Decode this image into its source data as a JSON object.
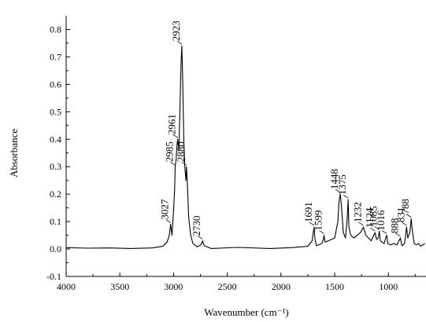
{
  "chart_data": {
    "type": "line",
    "xlabel": "Wavenumber (cm⁻¹)",
    "ylabel": "Absorbance",
    "x_reversed": true,
    "xlim": [
      4000,
      650
    ],
    "ylim": [
      -0.1,
      0.85
    ],
    "x_ticks": [
      4000,
      3500,
      3000,
      2500,
      2000,
      1500,
      1000
    ],
    "y_ticks": [
      -0.1,
      0.0,
      0.1,
      0.2,
      0.3,
      0.4,
      0.5,
      0.6,
      0.7,
      0.8
    ],
    "y_tick_labels": [
      "-0.1",
      "0.0",
      "0.1",
      "0.2",
      "0.3",
      "0.4",
      "0.5",
      "0.6",
      "0.7",
      "0.8"
    ],
    "grid": false,
    "legend": "none",
    "series": [
      {
        "color": "#000000",
        "points": [
          [
            4000,
            0.005
          ],
          [
            3800,
            0.003
          ],
          [
            3600,
            0.004
          ],
          [
            3400,
            0.002
          ],
          [
            3200,
            0.004
          ],
          [
            3100,
            0.01
          ],
          [
            3060,
            0.025
          ],
          [
            3040,
            0.05
          ],
          [
            3027,
            0.09
          ],
          [
            3015,
            0.05
          ],
          [
            3000,
            0.14
          ],
          [
            2990,
            0.22
          ],
          [
            2985,
            0.3
          ],
          [
            2975,
            0.33
          ],
          [
            2968,
            0.38
          ],
          [
            2961,
            0.4
          ],
          [
            2950,
            0.36
          ],
          [
            2940,
            0.52
          ],
          [
            2930,
            0.68
          ],
          [
            2923,
            0.74
          ],
          [
            2915,
            0.62
          ],
          [
            2905,
            0.4
          ],
          [
            2895,
            0.3
          ],
          [
            2885,
            0.25
          ],
          [
            2880,
            0.3
          ],
          [
            2870,
            0.22
          ],
          [
            2860,
            0.12
          ],
          [
            2850,
            0.08
          ],
          [
            2840,
            0.05
          ],
          [
            2820,
            0.02
          ],
          [
            2780,
            0.008
          ],
          [
            2745,
            0.015
          ],
          [
            2730,
            0.03
          ],
          [
            2715,
            0.012
          ],
          [
            2650,
            0.002
          ],
          [
            2400,
            0.006
          ],
          [
            2100,
            0.002
          ],
          [
            1900,
            0.005
          ],
          [
            1750,
            0.01
          ],
          [
            1710,
            0.03
          ],
          [
            1700,
            0.06
          ],
          [
            1691,
            0.08
          ],
          [
            1685,
            0.04
          ],
          [
            1670,
            0.012
          ],
          [
            1620,
            0.02
          ],
          [
            1605,
            0.035
          ],
          [
            1599,
            0.05
          ],
          [
            1590,
            0.025
          ],
          [
            1560,
            0.03
          ],
          [
            1500,
            0.04
          ],
          [
            1470,
            0.1
          ],
          [
            1460,
            0.17
          ],
          [
            1448,
            0.2
          ],
          [
            1438,
            0.16
          ],
          [
            1420,
            0.06
          ],
          [
            1400,
            0.04
          ],
          [
            1385,
            0.1
          ],
          [
            1375,
            0.18
          ],
          [
            1368,
            0.08
          ],
          [
            1350,
            0.05
          ],
          [
            1320,
            0.04
          ],
          [
            1290,
            0.05
          ],
          [
            1260,
            0.06
          ],
          [
            1232,
            0.08
          ],
          [
            1210,
            0.05
          ],
          [
            1160,
            0.03
          ],
          [
            1124,
            0.06
          ],
          [
            1110,
            0.035
          ],
          [
            1095,
            0.04
          ],
          [
            1085,
            0.065
          ],
          [
            1075,
            0.03
          ],
          [
            1040,
            0.02
          ],
          [
            1025,
            0.04
          ],
          [
            1016,
            0.05
          ],
          [
            1005,
            0.02
          ],
          [
            980,
            0.015
          ],
          [
            950,
            0.02
          ],
          [
            920,
            0.015
          ],
          [
            888,
            0.04
          ],
          [
            875,
            0.012
          ],
          [
            850,
            0.02
          ],
          [
            840,
            0.05
          ],
          [
            831,
            0.08
          ],
          [
            820,
            0.04
          ],
          [
            800,
            0.06
          ],
          [
            788,
            0.11
          ],
          [
            778,
            0.07
          ],
          [
            760,
            0.02
          ],
          [
            740,
            0.015
          ],
          [
            720,
            0.02
          ],
          [
            700,
            0.01
          ],
          [
            680,
            0.015
          ],
          [
            660,
            0.02
          ]
        ]
      }
    ],
    "annotations": [
      {
        "text": "3027",
        "x": 3027,
        "y": 0.09
      },
      {
        "text": "2985",
        "x": 2985,
        "y": 0.3
      },
      {
        "text": "2961",
        "x": 2961,
        "y": 0.4
      },
      {
        "text": "2923",
        "x": 2923,
        "y": 0.74
      },
      {
        "text": "2880",
        "x": 2880,
        "y": 0.3
      },
      {
        "text": "2730",
        "x": 2730,
        "y": 0.03
      },
      {
        "text": "1691",
        "x": 1691,
        "y": 0.08
      },
      {
        "text": "1599",
        "x": 1599,
        "y": 0.05
      },
      {
        "text": "1448",
        "x": 1448,
        "y": 0.2
      },
      {
        "text": "1375",
        "x": 1375,
        "y": 0.18
      },
      {
        "text": "1232",
        "x": 1232,
        "y": 0.08
      },
      {
        "text": "1124",
        "x": 1124,
        "y": 0.06
      },
      {
        "text": "1085",
        "x": 1085,
        "y": 0.065
      },
      {
        "text": "1016",
        "x": 1016,
        "y": 0.05
      },
      {
        "text": "888",
        "x": 888,
        "y": 0.04
      },
      {
        "text": "831",
        "x": 831,
        "y": 0.08
      },
      {
        "text": "788",
        "x": 788,
        "y": 0.11
      }
    ]
  }
}
